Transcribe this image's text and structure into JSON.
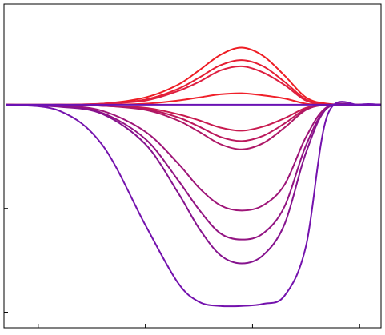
{
  "chart_data": {
    "type": "line",
    "x": [
      0.7,
      1.2,
      1.6,
      2.0,
      2.3,
      2.5,
      2.7,
      2.9,
      3.1,
      3.3,
      3.5,
      3.7,
      4.0,
      4.2
    ],
    "xlim": [
      0.68,
      4.2
    ],
    "xticks": [
      1,
      2,
      3,
      4
    ],
    "ylim": [
      -2.15,
      0.97
    ],
    "yticks": [
      -2,
      -1
    ],
    "series": [
      {
        "color": "#ee1d24",
        "values": [
          0,
          0,
          0.01,
          0.07,
          0.19,
          0.33,
          0.48,
          0.55,
          0.47,
          0.28,
          0.07,
          0.01,
          0,
          0
        ]
      },
      {
        "color": "#e61e33",
        "values": [
          0,
          0,
          0.01,
          0.05,
          0.15,
          0.26,
          0.38,
          0.43,
          0.37,
          0.22,
          0.05,
          0,
          0,
          0
        ]
      },
      {
        "color": "#de1f40",
        "values": [
          0,
          0,
          0.01,
          0.04,
          0.13,
          0.22,
          0.33,
          0.37,
          0.31,
          0.19,
          0.04,
          0,
          0,
          0
        ]
      },
      {
        "color": "#f0202a",
        "values": [
          0,
          0,
          0,
          0.01,
          0.04,
          0.07,
          0.1,
          0.11,
          0.09,
          0.06,
          0.01,
          0,
          0,
          0
        ]
      },
      {
        "color": "#c81a4f",
        "values": [
          0,
          0,
          -0.01,
          -0.03,
          -0.09,
          -0.15,
          -0.22,
          -0.25,
          -0.21,
          -0.13,
          -0.03,
          0,
          0,
          0
        ]
      },
      {
        "color": "#bb185c",
        "values": [
          0,
          0,
          -0.01,
          -0.04,
          -0.12,
          -0.21,
          -0.31,
          -0.35,
          -0.3,
          -0.18,
          -0.04,
          0,
          0,
          0
        ]
      },
      {
        "color": "#ae1766",
        "values": [
          0,
          0,
          -0.01,
          -0.05,
          -0.15,
          -0.26,
          -0.38,
          -0.43,
          -0.37,
          -0.22,
          -0.05,
          0,
          0,
          0
        ]
      },
      {
        "color": "#9e1578",
        "values": [
          0,
          -0.01,
          -0.06,
          -0.26,
          -0.56,
          -0.8,
          -0.97,
          -1.02,
          -0.97,
          -0.77,
          -0.31,
          -0.02,
          0,
          0
        ]
      },
      {
        "color": "#921482",
        "values": [
          0,
          -0.01,
          -0.08,
          -0.33,
          -0.72,
          -1.01,
          -1.24,
          -1.3,
          -1.24,
          -0.98,
          -0.39,
          -0.03,
          0,
          0
        ]
      },
      {
        "color": "#86138e",
        "values": [
          0,
          -0.02,
          -0.09,
          -0.38,
          -0.84,
          -1.19,
          -1.45,
          -1.53,
          -1.45,
          -1.15,
          -0.46,
          -0.03,
          0,
          0
        ]
      },
      {
        "color": "#7412ad",
        "values": [
          0,
          -0.06,
          -0.39,
          -1.16,
          -1.71,
          -1.9,
          -1.94,
          -1.94,
          -1.92,
          -1.84,
          -1.36,
          -0.1,
          0,
          0
        ]
      },
      {
        "color": "#6a12b4",
        "values": [
          0,
          0,
          0,
          0,
          0,
          0,
          0,
          0,
          0,
          0,
          0,
          0,
          0,
          0
        ]
      }
    ]
  }
}
